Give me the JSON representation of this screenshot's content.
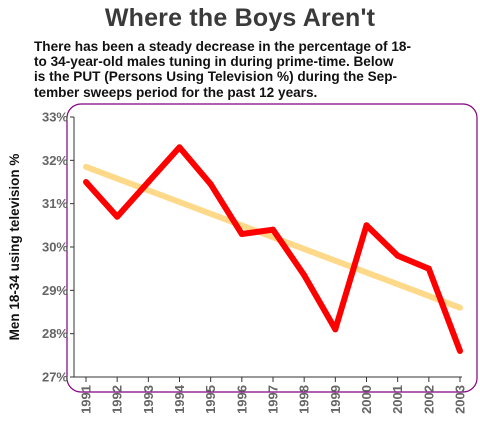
{
  "title": "Where the Boys Aren't",
  "subtitle_lines": [
    "There has been a steady decrease in the percentage of 18-",
    "to 34-year-old males tuning in during prime-time.  Below",
    "is the PUT (Persons Using Television %) during the Sep-",
    "tember sweeps period for the past 12 years."
  ],
  "colors": {
    "frame": "#800080",
    "series": "#ff0000",
    "trend": "#ffd98a",
    "tick_text": "#666666"
  },
  "chart_data": {
    "type": "line",
    "title": "Where the Boys Aren't",
    "xlabel": "",
    "ylabel": "Men 18-34 using television %",
    "ylim": [
      27,
      33
    ],
    "yticks": [
      27,
      28,
      29,
      30,
      31,
      32,
      33
    ],
    "ytick_labels": [
      "27%",
      "28%",
      "29%",
      "30%",
      "31%",
      "32%",
      "33%"
    ],
    "x": [
      1991,
      1992,
      1993,
      1994,
      1995,
      1996,
      1997,
      1998,
      1999,
      2000,
      2001,
      2002,
      2003
    ],
    "xtick_labels": [
      "1991",
      "1992",
      "1993",
      "1994",
      "1995",
      "1996",
      "1997",
      "1998",
      "1999",
      "2000",
      "2001",
      "2002",
      "2003"
    ],
    "series": [
      {
        "values": [
          31.5,
          30.7,
          31.5,
          32.3,
          31.45,
          30.3,
          30.4,
          29.35,
          28.1,
          30.5,
          29.8,
          29.5,
          27.6
        ]
      }
    ],
    "trend": {
      "values": [
        31.85,
        28.6
      ]
    },
    "grid": false,
    "legend": "none"
  }
}
